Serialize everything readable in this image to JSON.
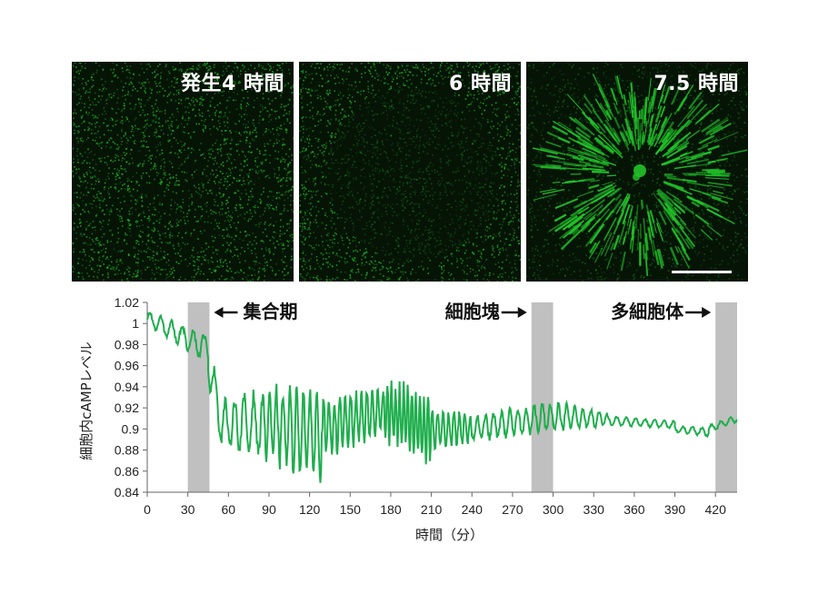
{
  "panels": [
    {
      "label": "発生4 時間",
      "pattern": "noise"
    },
    {
      "label": "6 時間",
      "pattern": "ring"
    },
    {
      "label": "7.5 時間",
      "pattern": "spiral",
      "scale_bar": true
    }
  ],
  "colors": {
    "fluor": "#22c32a",
    "panel_bg": "#061406",
    "line": "#1fae4d",
    "shade": "#c0c0c0"
  },
  "chart_data": {
    "type": "line",
    "xlabel": "時間（分）",
    "ylabel": "細胞内cAMPレベル",
    "xlim": [
      0,
      436
    ],
    "ylim": [
      0.84,
      1.02
    ],
    "xticks": [
      0,
      30,
      60,
      90,
      120,
      150,
      180,
      210,
      240,
      270,
      300,
      330,
      360,
      390,
      420
    ],
    "yticks": [
      0.84,
      0.86,
      0.88,
      0.9,
      0.92,
      0.94,
      0.96,
      0.98,
      1,
      1.02
    ],
    "shaded_regions": [
      {
        "x0": 30,
        "x1": 46,
        "label": "集合期",
        "arrow": "left"
      },
      {
        "x0": 284,
        "x1": 300,
        "label": "細胞塊",
        "arrow": "right"
      },
      {
        "x0": 420,
        "x1": 436,
        "label": "多細胞体",
        "arrow": "right"
      }
    ],
    "series": [
      {
        "segments": [
          {
            "x0": 0,
            "x1": 45,
            "base0": 1.005,
            "base1": 0.976,
            "amp0": 0.006,
            "amp1": 0.012,
            "period": 8
          },
          {
            "x0": 45,
            "x1": 55,
            "base0": 0.965,
            "base1": 0.905,
            "amp0": 0.018,
            "amp1": 0.02,
            "period": 8
          },
          {
            "x0": 55,
            "x1": 85,
            "base0": 0.905,
            "base1": 0.905,
            "amp0": 0.02,
            "amp1": 0.028,
            "period": 7
          },
          {
            "x0": 85,
            "x1": 130,
            "base0": 0.905,
            "base1": 0.895,
            "amp0": 0.03,
            "amp1": 0.04,
            "period": 5
          },
          {
            "x0": 130,
            "x1": 175,
            "base0": 0.9,
            "base1": 0.918,
            "amp0": 0.025,
            "amp1": 0.02,
            "period": 4
          },
          {
            "x0": 175,
            "x1": 210,
            "base0": 0.918,
            "base1": 0.9,
            "amp0": 0.025,
            "amp1": 0.032,
            "period": 3
          },
          {
            "x0": 210,
            "x1": 240,
            "base0": 0.9,
            "base1": 0.9,
            "amp0": 0.018,
            "amp1": 0.012,
            "period": 4
          },
          {
            "x0": 240,
            "x1": 300,
            "base0": 0.9,
            "base1": 0.912,
            "amp0": 0.011,
            "amp1": 0.013,
            "period": 6
          },
          {
            "x0": 300,
            "x1": 340,
            "base0": 0.912,
            "base1": 0.909,
            "amp0": 0.013,
            "amp1": 0.006,
            "period": 6
          },
          {
            "x0": 340,
            "x1": 390,
            "base0": 0.908,
            "base1": 0.904,
            "amp0": 0.004,
            "amp1": 0.003,
            "period": 7
          },
          {
            "x0": 390,
            "x1": 415,
            "base0": 0.9,
            "base1": 0.897,
            "amp0": 0.003,
            "amp1": 0.004,
            "period": 7
          },
          {
            "x0": 415,
            "x1": 436,
            "base0": 0.9,
            "base1": 0.91,
            "amp0": 0.003,
            "amp1": 0.003,
            "period": 7
          }
        ]
      }
    ]
  }
}
